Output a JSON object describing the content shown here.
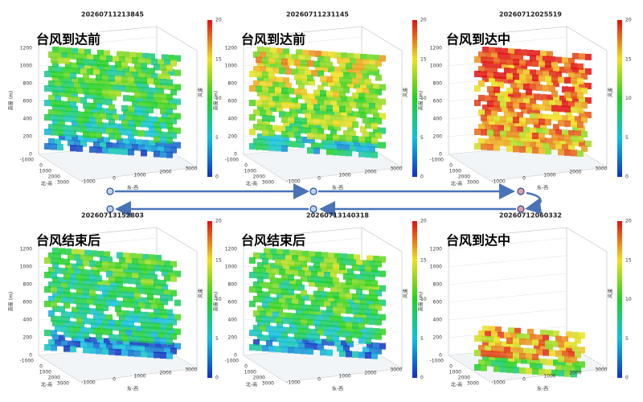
{
  "panels": [
    {
      "timestamp": "20260711213845",
      "label": "台风到达前"
    },
    {
      "timestamp": "20260711231145",
      "label": "台风到达前"
    },
    {
      "timestamp": "20260712025519",
      "label": "台风到达中"
    },
    {
      "timestamp": "20260713152803",
      "label": "台风结束后"
    },
    {
      "timestamp": "20260713140318",
      "label": "台风结束后"
    },
    {
      "timestamp": "20260712060332",
      "label": "台风到达中"
    }
  ],
  "axes": {
    "z_label": "高度 (m)",
    "z_ticks": [
      "0",
      "200",
      "400",
      "600",
      "800",
      "1000",
      "1200"
    ],
    "x_label": "东-西",
    "x_ticks": [
      "-1000",
      "0",
      "1000",
      "2000",
      "3000"
    ],
    "y_label": "北-南",
    "y_ticks": [
      "-1000",
      "0",
      "1000",
      "2000",
      "3000"
    ],
    "colorbar_label": "风速",
    "colorbar_ticks": [
      "0",
      "5",
      "10",
      "15",
      "20"
    ]
  }
}
